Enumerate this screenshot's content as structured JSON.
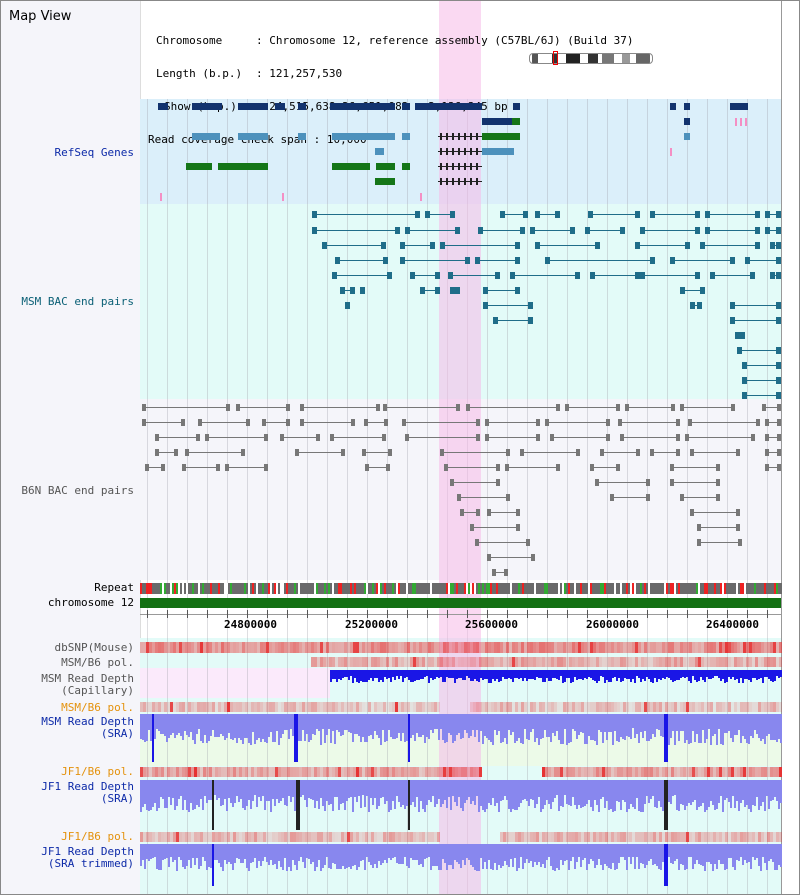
{
  "page": {
    "title": "Map View"
  },
  "info": {
    "chrom_label": "Chromosome",
    "chrom_value": "Chromosome 12, reference assembly (C57BL/6J) (Build 37)",
    "length_label": "Length (b.p.)",
    "length_value": "121,257,530",
    "show_label": "Show (b.p.)",
    "show_value": "24,515,638-26,651,982 : 2,136,345 bp",
    "span_label": "Read coverage check span",
    "span_value": "10,000"
  },
  "tracks": {
    "refseq": "RefSeq Genes",
    "msm_bac": "MSM BAC end pairs",
    "b6n_bac": "B6N BAC end pairs",
    "repeat": "Repeat",
    "chromosome": "chromosome 12",
    "dbsnp": "dbSNP(Mouse)",
    "msm_b6_pol": "MSM/B6 pol.",
    "msm_depth_cap_1": "MSM Read Depth",
    "msm_depth_cap_2": "(Capillary)",
    "msm_b6_pol2": "MSM/B6 pol.",
    "msm_depth_sra_1": "MSM Read Depth",
    "msm_depth_sra_2": "(SRA)",
    "jf1_b6_pol": "JF1/B6 pol.",
    "jf1_depth_sra_1": "JF1 Read Depth",
    "jf1_depth_sra_2": "(SRA)",
    "jf1_b6_pol2": "JF1/B6 pol.",
    "jf1_depth_trim_1": "JF1 Read Depth",
    "jf1_depth_trim_2": "(SRA trimmed)"
  },
  "axis": {
    "ticks": [
      "24800000",
      "25200000",
      "25600000",
      "26000000",
      "26400000"
    ]
  },
  "colors": {
    "refseq_bg": "#dbeffa",
    "msm_bg": "#e3fbf8",
    "b6n_bg": "#f5f5fa",
    "highlight": "#f7d7f0",
    "gene_dark": "#12336e",
    "gene_mid": "#4d91bc",
    "gene_green": "#157618",
    "msm_feature": "#1f6d89",
    "b6n_feature": "#777777",
    "chromosome": "#137013",
    "depth_blue": "#1a16e6",
    "depth_light": "#8887ee",
    "pol_red": "#e64646",
    "label_blue": "#0d2aa8",
    "label_teal": "#0b6076",
    "label_orange": "#e4920d"
  }
}
